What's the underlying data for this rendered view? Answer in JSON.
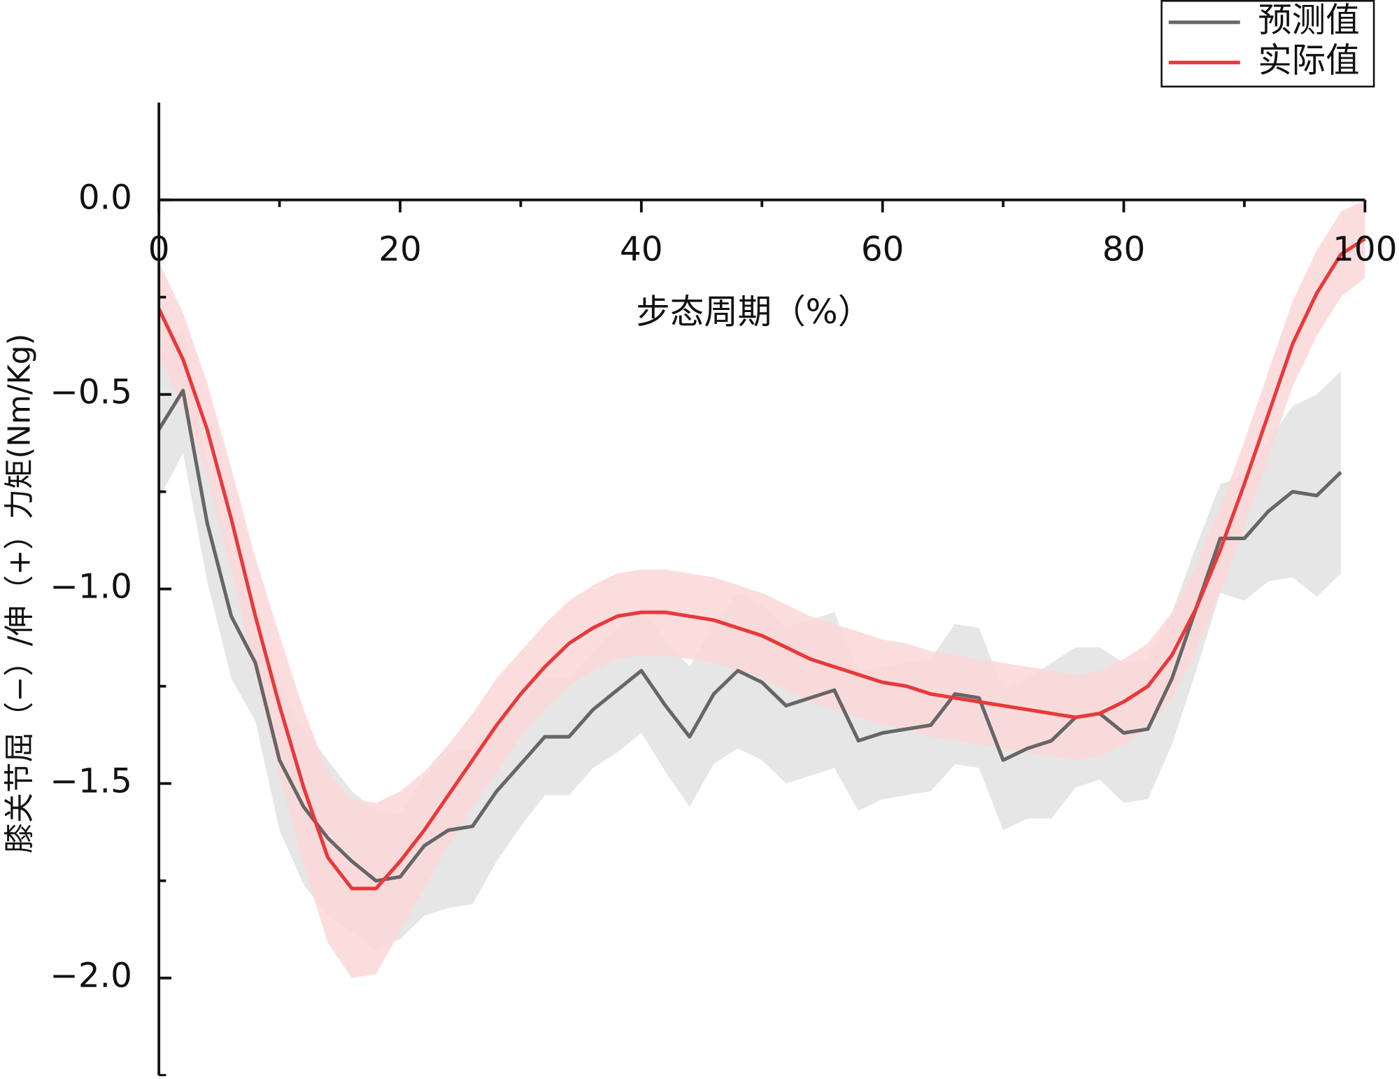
{
  "chart_data": {
    "type": "line",
    "xlabel": "步态周期（%）",
    "ylabel": "膝关节屈（−）/伸（+）力矩(Nm/Kg)",
    "x": [
      0,
      2,
      4,
      6,
      8,
      10,
      12,
      14,
      16,
      18,
      20,
      22,
      24,
      26,
      28,
      30,
      32,
      34,
      36,
      38,
      40,
      42,
      44,
      46,
      48,
      50,
      52,
      54,
      56,
      58,
      60,
      62,
      64,
      66,
      68,
      70,
      72,
      74,
      76,
      78,
      80,
      82,
      84,
      86,
      88,
      90,
      92,
      94,
      96,
      98,
      100
    ],
    "series": [
      {
        "name": "预测值",
        "color": "#666666",
        "band_color": "#e6e6e6",
        "values": [
          -0.59,
          -0.49,
          -0.83,
          -1.07,
          -1.19,
          -1.44,
          -1.56,
          -1.64,
          -1.7,
          -1.75,
          -1.74,
          -1.66,
          -1.62,
          -1.61,
          -1.52,
          -1.45,
          -1.38,
          -1.38,
          -1.31,
          -1.26,
          -1.21,
          -1.3,
          -1.38,
          -1.27,
          -1.21,
          -1.24,
          -1.3,
          -1.28,
          -1.26,
          -1.39,
          -1.37,
          -1.36,
          -1.35,
          -1.27,
          -1.28,
          -1.44,
          -1.41,
          -1.39,
          -1.33,
          -1.32,
          -1.37,
          -1.36,
          -1.23,
          -1.05,
          -0.87,
          -0.87,
          -0.8,
          -0.75,
          -0.76,
          -0.7,
          null
        ],
        "band": [
          0.18,
          0.16,
          0.15,
          0.16,
          0.15,
          0.18,
          0.2,
          0.2,
          0.18,
          0.18,
          0.16,
          0.18,
          0.2,
          0.2,
          0.18,
          0.16,
          0.15,
          0.15,
          0.15,
          0.16,
          0.16,
          0.17,
          0.18,
          0.18,
          0.2,
          0.2,
          0.2,
          0.2,
          0.2,
          0.18,
          0.17,
          0.17,
          0.17,
          0.18,
          0.18,
          0.18,
          0.18,
          0.2,
          0.18,
          0.17,
          0.18,
          0.18,
          0.17,
          0.16,
          0.14,
          0.16,
          0.18,
          0.22,
          0.26,
          0.26,
          null
        ]
      },
      {
        "name": "实际值",
        "color": "#e8393b",
        "band_color": "#fbd7d8",
        "values": [
          -0.28,
          -0.41,
          -0.59,
          -0.82,
          -1.07,
          -1.3,
          -1.51,
          -1.69,
          -1.77,
          -1.77,
          -1.7,
          -1.62,
          -1.53,
          -1.44,
          -1.35,
          -1.27,
          -1.2,
          -1.14,
          -1.1,
          -1.07,
          -1.06,
          -1.06,
          -1.07,
          -1.08,
          -1.1,
          -1.12,
          -1.15,
          -1.18,
          -1.2,
          -1.22,
          -1.24,
          -1.25,
          -1.27,
          -1.28,
          -1.29,
          -1.3,
          -1.31,
          -1.32,
          -1.33,
          -1.32,
          -1.29,
          -1.25,
          -1.17,
          -1.05,
          -0.9,
          -0.73,
          -0.55,
          -0.37,
          -0.24,
          -0.14,
          -0.1
        ],
        "band": [
          0.12,
          0.12,
          0.12,
          0.13,
          0.15,
          0.18,
          0.2,
          0.22,
          0.23,
          0.22,
          0.18,
          0.15,
          0.13,
          0.12,
          0.12,
          0.11,
          0.11,
          0.11,
          0.11,
          0.11,
          0.11,
          0.11,
          0.11,
          0.11,
          0.11,
          0.11,
          0.11,
          0.11,
          0.11,
          0.11,
          0.11,
          0.11,
          0.11,
          0.11,
          0.11,
          0.11,
          0.11,
          0.11,
          0.11,
          0.11,
          0.11,
          0.11,
          0.11,
          0.11,
          0.11,
          0.11,
          0.11,
          0.11,
          0.11,
          0.11,
          0.1
        ]
      }
    ],
    "xlim": [
      0,
      100
    ],
    "xticks": [
      0,
      20,
      40,
      60,
      80,
      100
    ],
    "ylim": [
      -2.25,
      0.25
    ],
    "yticks": [
      {
        "value": 0,
        "label": "0.0"
      },
      {
        "value": -0.5,
        "label": "−0.5"
      },
      {
        "value": -1,
        "label": "−1.0"
      },
      {
        "value": -1.5,
        "label": "−1.5"
      },
      {
        "value": -2,
        "label": "−2.0"
      }
    ],
    "legend": "upper right"
  }
}
